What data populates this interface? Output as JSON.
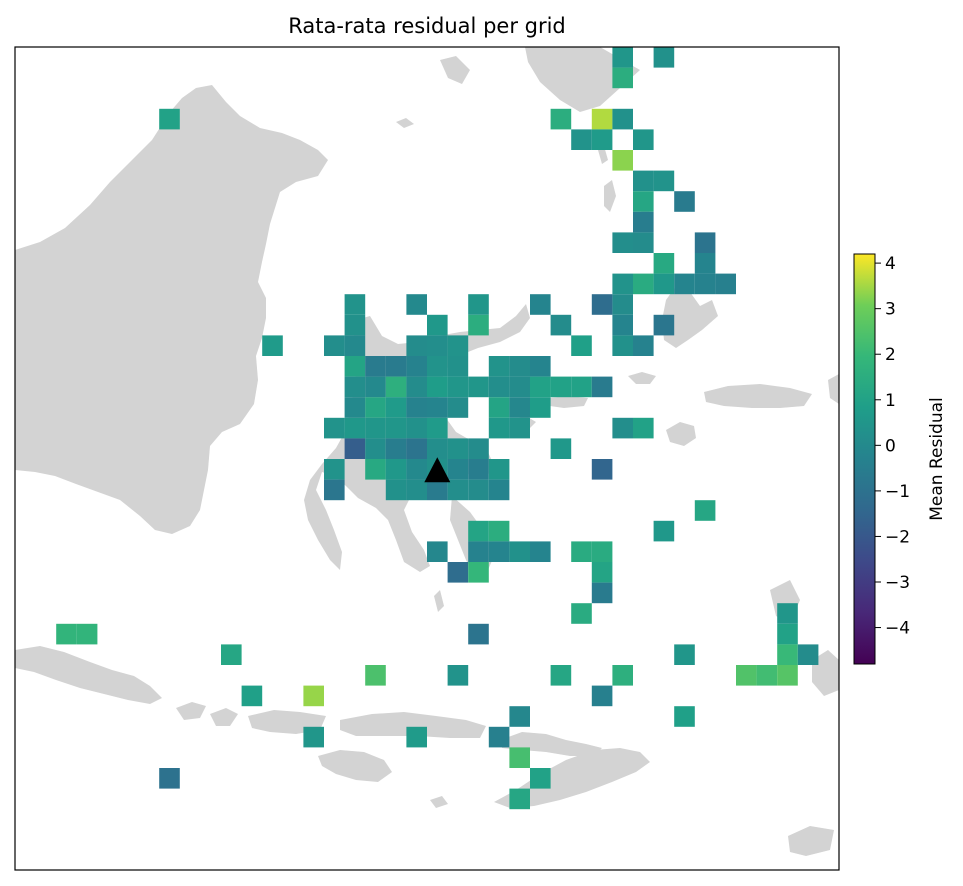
{
  "title": "Rata-rata residual per grid",
  "colorbar": {
    "label": "Mean Residual",
    "colormap": "viridis",
    "vmin": -4.8,
    "vmax": 4.2,
    "ticks": [
      4,
      3,
      2,
      1,
      0,
      -1,
      -2,
      -3,
      -4
    ],
    "tick_labels": [
      "4",
      "3",
      "2",
      "1",
      "0",
      "−1",
      "−2",
      "−3",
      "−4"
    ]
  },
  "map": {
    "land_color": "#d3d3d3",
    "station_marker": "black-triangle",
    "station_cell": [
      20,
      20
    ]
  },
  "chart_data": {
    "type": "heatmap",
    "grid": "40x40 cells (column, row) with mean residual value",
    "cells": [
      [
        29,
        0,
        0.5
      ],
      [
        31,
        0,
        0.3
      ],
      [
        29,
        1,
        1.5
      ],
      [
        7,
        3,
        1.0
      ],
      [
        26,
        3,
        1.5
      ],
      [
        28,
        3,
        3.6
      ],
      [
        29,
        3,
        0.3
      ],
      [
        27,
        4,
        0.4
      ],
      [
        28,
        4,
        0.7
      ],
      [
        30,
        4,
        0.5
      ],
      [
        29,
        5,
        3.3
      ],
      [
        30,
        6,
        0.3
      ],
      [
        31,
        6,
        0.4
      ],
      [
        30,
        7,
        1.2
      ],
      [
        32,
        7,
        -0.6
      ],
      [
        30,
        8,
        -0.5
      ],
      [
        29,
        9,
        0.2
      ],
      [
        30,
        9,
        0.1
      ],
      [
        33,
        9,
        -0.9
      ],
      [
        31,
        10,
        1.3
      ],
      [
        33,
        10,
        -0.2
      ],
      [
        29,
        11,
        0.4
      ],
      [
        30,
        11,
        1.4
      ],
      [
        31,
        11,
        0.6
      ],
      [
        32,
        11,
        -0.2
      ],
      [
        33,
        11,
        -0.3
      ],
      [
        34,
        11,
        -0.4
      ],
      [
        16,
        12,
        0.4
      ],
      [
        19,
        12,
        0.0
      ],
      [
        22,
        12,
        0.5
      ],
      [
        25,
        12,
        -0.2
      ],
      [
        28,
        12,
        -1.2
      ],
      [
        29,
        12,
        0.1
      ],
      [
        16,
        13,
        0.3
      ],
      [
        20,
        13,
        0.6
      ],
      [
        22,
        13,
        1.5
      ],
      [
        26,
        13,
        0.1
      ],
      [
        29,
        13,
        -0.2
      ],
      [
        31,
        13,
        -0.8
      ],
      [
        12,
        14,
        0.7
      ],
      [
        15,
        14,
        0.2
      ],
      [
        16,
        14,
        0.0
      ],
      [
        19,
        14,
        0.1
      ],
      [
        20,
        14,
        0.2
      ],
      [
        21,
        14,
        0.4
      ],
      [
        27,
        14,
        0.9
      ],
      [
        29,
        14,
        0.3
      ],
      [
        30,
        14,
        -0.3
      ],
      [
        16,
        15,
        1.1
      ],
      [
        17,
        15,
        -0.6
      ],
      [
        18,
        15,
        -0.6
      ],
      [
        19,
        15,
        -0.3
      ],
      [
        20,
        15,
        0.4
      ],
      [
        21,
        15,
        0.3
      ],
      [
        23,
        15,
        0.4
      ],
      [
        24,
        15,
        0.1
      ],
      [
        25,
        15,
        -0.2
      ],
      [
        16,
        16,
        0.2
      ],
      [
        17,
        16,
        0.0
      ],
      [
        18,
        16,
        1.6
      ],
      [
        19,
        16,
        0.1
      ],
      [
        20,
        16,
        0.8
      ],
      [
        21,
        16,
        0.5
      ],
      [
        22,
        16,
        0.5
      ],
      [
        23,
        16,
        0.2
      ],
      [
        24,
        16,
        0.1
      ],
      [
        25,
        16,
        1.0
      ],
      [
        26,
        16,
        1.0
      ],
      [
        27,
        16,
        1.0
      ],
      [
        28,
        16,
        -0.6
      ],
      [
        16,
        17,
        0.0
      ],
      [
        17,
        17,
        1.2
      ],
      [
        18,
        17,
        0.7
      ],
      [
        19,
        17,
        -0.3
      ],
      [
        20,
        17,
        -0.2
      ],
      [
        21,
        17,
        0.1
      ],
      [
        23,
        17,
        1.1
      ],
      [
        24,
        17,
        -0.1
      ],
      [
        25,
        17,
        0.8
      ],
      [
        15,
        18,
        0.4
      ],
      [
        16,
        18,
        0.6
      ],
      [
        17,
        18,
        0.5
      ],
      [
        18,
        18,
        0.5
      ],
      [
        19,
        18,
        0.3
      ],
      [
        20,
        18,
        0.7
      ],
      [
        23,
        18,
        0.6
      ],
      [
        24,
        18,
        0.4
      ],
      [
        29,
        18,
        0.2
      ],
      [
        30,
        18,
        1.0
      ],
      [
        16,
        19,
        -1.8
      ],
      [
        17,
        19,
        0.2
      ],
      [
        18,
        19,
        -0.5
      ],
      [
        19,
        19,
        -0.9
      ],
      [
        20,
        19,
        0.2
      ],
      [
        21,
        19,
        0.3
      ],
      [
        22,
        19,
        0.1
      ],
      [
        26,
        19,
        0.6
      ],
      [
        15,
        20,
        0.4
      ],
      [
        17,
        20,
        1.3
      ],
      [
        18,
        20,
        0.6
      ],
      [
        19,
        20,
        0.0
      ],
      [
        20,
        20,
        0.3
      ],
      [
        21,
        20,
        -0.2
      ],
      [
        22,
        20,
        -0.5
      ],
      [
        23,
        20,
        0.5
      ],
      [
        28,
        20,
        -1.5
      ],
      [
        15,
        21,
        -0.8
      ],
      [
        18,
        21,
        0.3
      ],
      [
        19,
        21,
        0.2
      ],
      [
        20,
        21,
        -0.6
      ],
      [
        21,
        21,
        0.2
      ],
      [
        22,
        21,
        0.1
      ],
      [
        23,
        21,
        -0.2
      ],
      [
        33,
        22,
        1.2
      ],
      [
        22,
        23,
        1.1
      ],
      [
        23,
        23,
        1.5
      ],
      [
        31,
        23,
        0.6
      ],
      [
        20,
        24,
        -0.1
      ],
      [
        22,
        24,
        -0.3
      ],
      [
        23,
        24,
        -0.2
      ],
      [
        24,
        24,
        0.3
      ],
      [
        25,
        24,
        -0.2
      ],
      [
        27,
        24,
        1.4
      ],
      [
        28,
        24,
        1.4
      ],
      [
        21,
        25,
        -1.2
      ],
      [
        22,
        25,
        1.9
      ],
      [
        28,
        25,
        1.1
      ],
      [
        28,
        26,
        -0.6
      ],
      [
        27,
        27,
        1.4
      ],
      [
        37,
        27,
        0.5
      ],
      [
        2,
        28,
        1.8
      ],
      [
        3,
        28,
        1.8
      ],
      [
        22,
        28,
        -0.9
      ],
      [
        37,
        28,
        1.0
      ],
      [
        10,
        29,
        1.2
      ],
      [
        32,
        29,
        0.5
      ],
      [
        37,
        29,
        2.0
      ],
      [
        38,
        29,
        0.1
      ],
      [
        17,
        30,
        2.4
      ],
      [
        21,
        30,
        0.4
      ],
      [
        26,
        30,
        1.2
      ],
      [
        29,
        30,
        1.6
      ],
      [
        35,
        30,
        2.5
      ],
      [
        36,
        30,
        2.2
      ],
      [
        37,
        30,
        2.6
      ],
      [
        11,
        31,
        0.9
      ],
      [
        14,
        31,
        3.4
      ],
      [
        28,
        31,
        -0.4
      ],
      [
        24,
        32,
        -0.1
      ],
      [
        32,
        32,
        0.9
      ],
      [
        14,
        33,
        0.5
      ],
      [
        19,
        33,
        0.7
      ],
      [
        23,
        33,
        -0.4
      ],
      [
        24,
        34,
        2.3
      ],
      [
        7,
        35,
        -1.0
      ],
      [
        25,
        35,
        1.0
      ],
      [
        24,
        36,
        1.2
      ]
    ]
  }
}
